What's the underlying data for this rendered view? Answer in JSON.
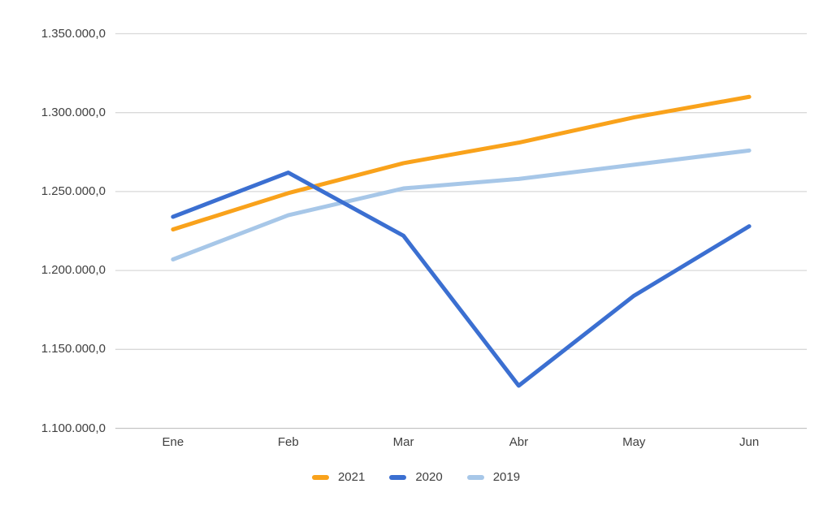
{
  "chart_data": {
    "type": "line",
    "title": "",
    "categories": [
      "Ene",
      "Feb",
      "Mar",
      "Abr",
      "May",
      "Jun"
    ],
    "series": [
      {
        "name": "2021",
        "color": "#F9A21B",
        "values": [
          1226000,
          1249000,
          1268000,
          1281000,
          1297000,
          1310000
        ]
      },
      {
        "name": "2020",
        "color": "#3B6FD1",
        "values": [
          1234000,
          1262000,
          1222000,
          1127000,
          1184000,
          1228000
        ]
      },
      {
        "name": "2019",
        "color": "#A7C7E8",
        "values": [
          1207000,
          1235000,
          1252000,
          1258000,
          1267000,
          1276000
        ]
      }
    ],
    "y_axis": {
      "min": 1100000,
      "max": 1350000,
      "step": 50000,
      "tick_labels": [
        "1.350.000,0",
        "1.300.000,0",
        "1.250.000,0",
        "1.200.000,0",
        "1.150.000,0",
        "1.100.000,0"
      ]
    },
    "x_axis": {
      "tick_labels": [
        "Ene",
        "Feb",
        "Mar",
        "Abr",
        "May",
        "Jun"
      ]
    },
    "legend": {
      "position": "bottom",
      "entries": [
        "2021",
        "2020",
        "2019"
      ]
    },
    "grid": true,
    "colors": {
      "gridline": "#D9D9D9",
      "baseline": "#C6C6C6",
      "axis_text": "#404040",
      "background": "#FFFFFF"
    }
  }
}
